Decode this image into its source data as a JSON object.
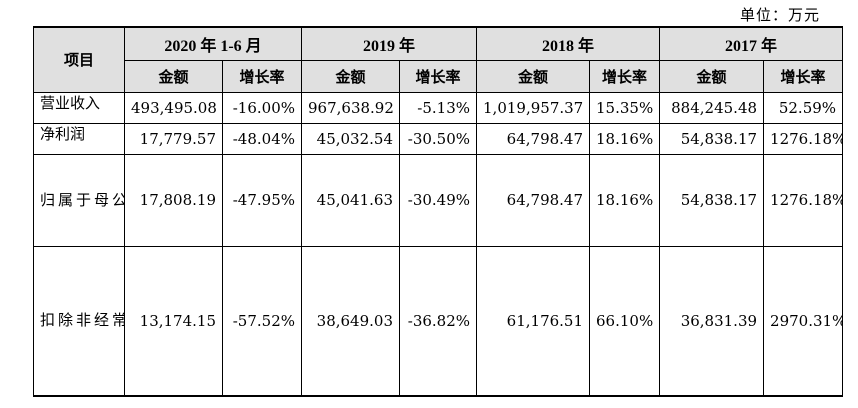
{
  "unit_label": "单位：万元",
  "table": {
    "header_item": "项目",
    "periods": [
      "2020 年 1-6 月",
      "2019 年",
      "2018 年",
      "2017 年"
    ],
    "amount_label": "金额",
    "growth_label": "增长率",
    "rows": [
      {
        "label": "营业收入",
        "values": [
          "493,495.08",
          "-16.00%",
          "967,638.92",
          "-5.13%",
          "1,019,957.37",
          "15.35%",
          "884,245.48",
          "52.59%"
        ]
      },
      {
        "label": "净利润",
        "values": [
          "17,779.57",
          "-48.04%",
          "45,032.54",
          "-30.50%",
          "64,798.47",
          "18.16%",
          "54,838.17",
          "1276.18%"
        ]
      },
      {
        "label": "归属于母公司所有者的净利润",
        "values": [
          "17,808.19",
          "-47.95%",
          "45,041.63",
          "-30.49%",
          "64,798.47",
          "18.16%",
          "54,838.17",
          "1276.18%"
        ]
      },
      {
        "label": "扣除非经常性损益后归属于母公司所有者的净利润",
        "values": [
          "13,174.15",
          "-57.52%",
          "38,649.03",
          "-36.82%",
          "61,176.51",
          "66.10%",
          "36,831.39",
          "2970.31%"
        ]
      }
    ]
  }
}
